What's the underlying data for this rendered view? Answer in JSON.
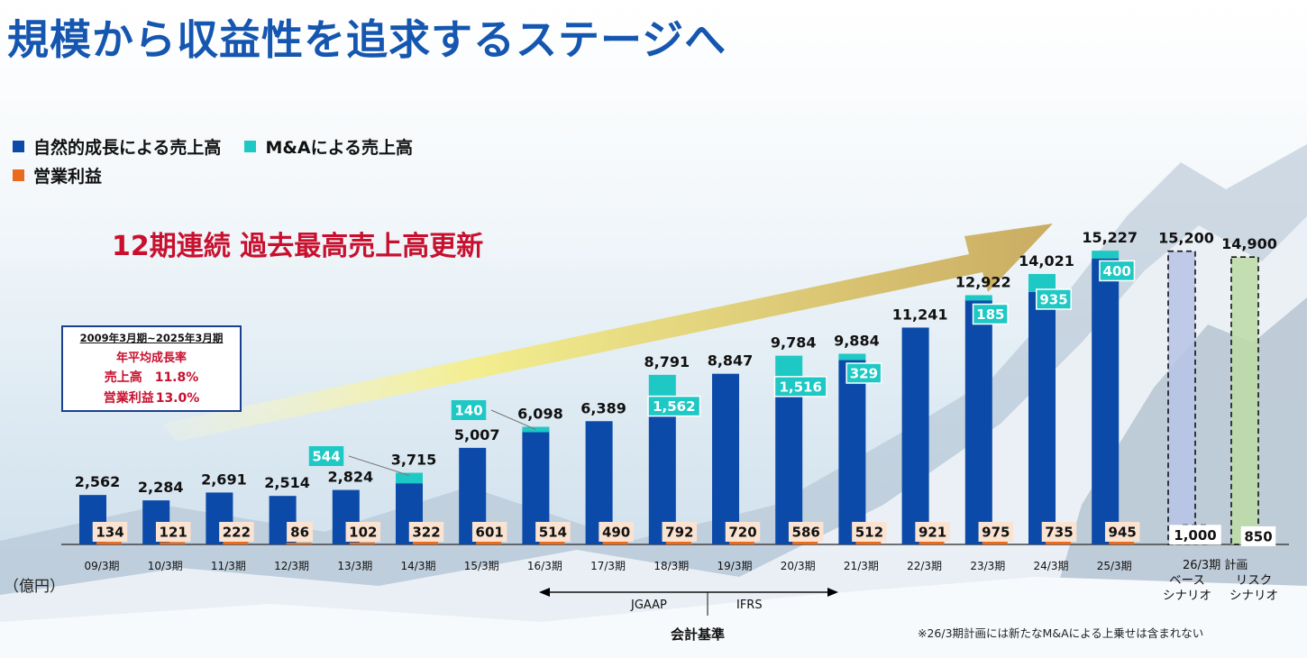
{
  "title": "規模から収益性を追求するステージへ",
  "legend": {
    "organic": "自然的成長による売上高",
    "ma": "M&Aによる売上高",
    "op": "営業利益"
  },
  "colors": {
    "organic": "#0b4aa8",
    "ma": "#1ec8c4",
    "op": "#ec6a1c",
    "headline": "#c8102e",
    "title": "#1556b0",
    "base_fill": "#b7c3e6",
    "risk_fill": "#bcdca6"
  },
  "headline": "12期連続 過去最高売上高更新",
  "cagr_box": {
    "period": "2009年3月期~2025年3月期",
    "label": "年平均成長率",
    "sales_label": "売上高",
    "sales_value": "11.8%",
    "op_label": "営業利益",
    "op_value": "13.0%"
  },
  "unit": "（億円）",
  "accounting": {
    "jgaap": "JGAAP",
    "ifrs": "IFRS",
    "label": "会計基準"
  },
  "note": "※26/3期計画には新たなM&Aによる上乗せは含まれない",
  "plan_label": "26/3期 計画",
  "scenarios": {
    "base_line1": "ベース",
    "base_line2": "シナリオ",
    "risk_line1": "リスク",
    "risk_line2": "シナリオ"
  },
  "chart_data": {
    "type": "bar",
    "categories": [
      "09/3期",
      "10/3期",
      "11/3期",
      "12/3期",
      "13/3期",
      "14/3期",
      "15/3期",
      "16/3期",
      "17/3期",
      "18/3期",
      "19/3期",
      "20/3期",
      "21/3期",
      "22/3期",
      "23/3期",
      "24/3期",
      "25/3期"
    ],
    "total_sales": [
      2562,
      2284,
      2691,
      2514,
      2824,
      3715,
      5007,
      6098,
      6389,
      8791,
      8847,
      9784,
      9884,
      11241,
      12922,
      14021,
      15227
    ],
    "total_labels": [
      "2,562",
      "2,284",
      "2,691",
      "2,514",
      "2,824",
      "3,715",
      "5,007",
      "6,098",
      "6,389",
      "8,791",
      "8,847",
      "9,784",
      "9,884",
      "11,241",
      "12,922",
      "14,021",
      "15,227"
    ],
    "ma_increment": [
      0,
      0,
      0,
      0,
      0,
      544,
      0,
      140,
      0,
      1562,
      0,
      1516,
      329,
      0,
      185,
      935,
      400
    ],
    "ma_labels": [
      "",
      "",
      "",
      "",
      "",
      "544",
      "",
      "140",
      "",
      "1,562",
      "",
      "1,516",
      "329",
      "",
      "185",
      "935",
      "400"
    ],
    "operating_profit": [
      134,
      121,
      222,
      86,
      102,
      322,
      601,
      514,
      490,
      792,
      720,
      586,
      512,
      921,
      975,
      735,
      945
    ],
    "op_labels": [
      "134",
      "121",
      "222",
      "86",
      "102",
      "322",
      "601",
      "514",
      "490",
      "792",
      "720",
      "586",
      "512",
      "921",
      "975",
      "735",
      "945"
    ],
    "plan": [
      {
        "scenario": "base",
        "sales": 15200,
        "sales_label": "15,200",
        "op": 1000,
        "op_label": "1,000"
      },
      {
        "scenario": "risk",
        "sales": 14900,
        "sales_label": "14,900",
        "op": 850,
        "op_label": "850"
      }
    ],
    "accounting_standard": [
      {
        "name": "JGAAP",
        "from": "16/3期",
        "to": "18/3期"
      },
      {
        "name": "IFRS",
        "from": "19/3期",
        "to": "21/3期"
      }
    ],
    "ylim": [
      0,
      16500
    ]
  }
}
